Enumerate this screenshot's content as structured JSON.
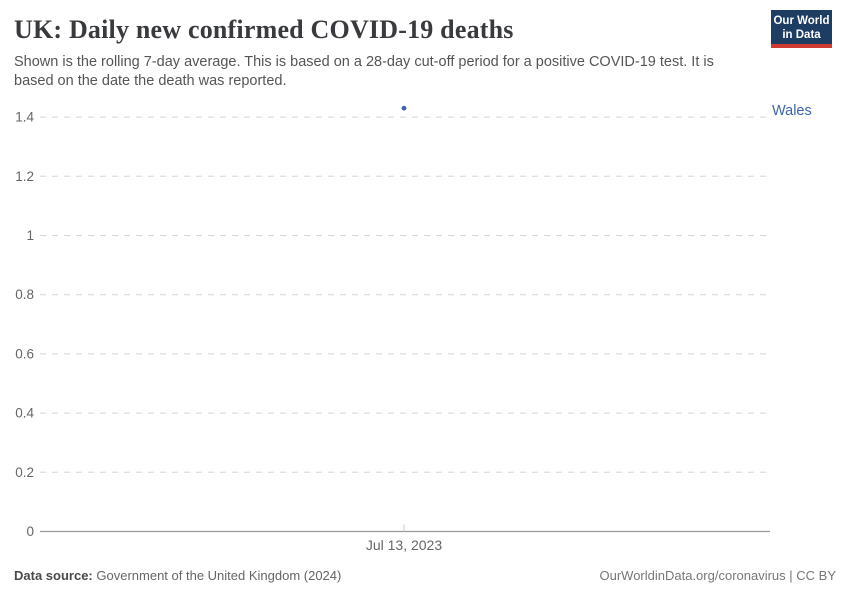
{
  "header": {
    "title": "UK: Daily new confirmed COVID-19 deaths",
    "subtitle": "Shown is the rolling 7-day average. This is based on a 28-day cut-off period for a positive COVID-19 test. It is based on the date the death was reported."
  },
  "logo": {
    "line1": "Our World",
    "line2": "in Data",
    "bg_color": "#1d3d63",
    "bar_color": "#cf3b32"
  },
  "chart_data": {
    "type": "scatter",
    "title": "UK: Daily new confirmed COVID-19 deaths",
    "series": [
      {
        "name": "Wales",
        "color": "#3d64a9",
        "points": [
          {
            "x_label": "Jul 13, 2023",
            "value": 1.43
          }
        ]
      }
    ],
    "yticks": [
      0,
      0.2,
      0.4,
      0.6,
      0.8,
      1,
      1.2,
      1.4
    ],
    "ylim": [
      0,
      1.4
    ],
    "xticks": [
      "Jul 13, 2023"
    ],
    "xlabel": "",
    "ylabel": "",
    "grid": "horizontal-dashed",
    "legend_position": "right-of-plot"
  },
  "footer": {
    "source_label": "Data source:",
    "source_value": "Government of the United Kingdom (2024)",
    "credit": "OurWorldinData.org/coronavirus | CC BY"
  }
}
